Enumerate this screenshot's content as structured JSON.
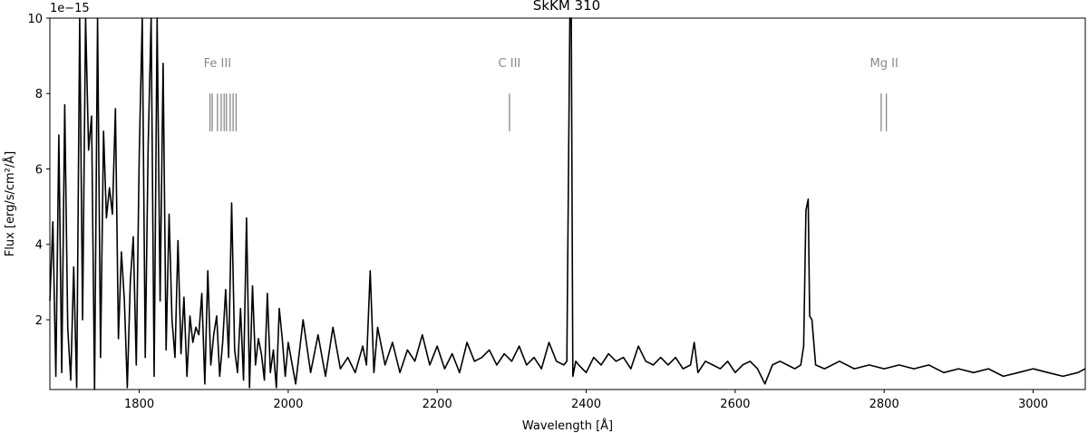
{
  "chart_data": {
    "type": "line",
    "title": "SkKM 310",
    "xlabel": "Wavelength [Å]",
    "ylabel": "Flux [erg/s/cm²/Å]",
    "y_offset_text": "1e−15",
    "xlim": [
      1680,
      3070
    ],
    "ylim": [
      0.15,
      10
    ],
    "xticks": [
      1800,
      2000,
      2200,
      2400,
      2600,
      2800,
      3000
    ],
    "yticks": [
      2,
      4,
      6,
      8,
      10
    ],
    "grid": false,
    "line_color": "#000000",
    "marker_color": "#888888",
    "line_markers": [
      {
        "label": "Fe III",
        "label_x": 1905,
        "lines": [
          1895,
          1898,
          1905,
          1910,
          1914,
          1917,
          1922,
          1926,
          1930
        ]
      },
      {
        "label": "C III",
        "label_x": 2297,
        "lines": [
          2297
        ]
      },
      {
        "label": "Mg II",
        "label_x": 2800,
        "lines": [
          2796,
          2803
        ]
      }
    ],
    "marker_range": [
      7.0,
      8.0
    ],
    "series": [
      {
        "x": [
          1680,
          1684,
          1688,
          1692,
          1696,
          1700,
          1704,
          1708,
          1712,
          1716,
          1720,
          1724,
          1728,
          1732,
          1736,
          1740,
          1744,
          1748,
          1752,
          1756,
          1760,
          1764,
          1768,
          1772,
          1776,
          1780,
          1784,
          1788,
          1792,
          1796,
          1800,
          1804,
          1808,
          1812,
          1816,
          1820,
          1824,
          1828,
          1832,
          1836,
          1840,
          1844,
          1848,
          1852,
          1856,
          1860,
          1864,
          1868,
          1872,
          1876,
          1880,
          1884,
          1888,
          1892,
          1896,
          1900,
          1904,
          1908,
          1912,
          1916,
          1920,
          1924,
          1928,
          1932,
          1936,
          1940,
          1944,
          1948,
          1952,
          1956,
          1960,
          1964,
          1968,
          1972,
          1976,
          1980,
          1984,
          1988,
          1992,
          1996,
          2000,
          2010,
          2020,
          2030,
          2040,
          2050,
          2060,
          2070,
          2080,
          2090,
          2100,
          2105,
          2110,
          2115,
          2120,
          2130,
          2140,
          2150,
          2160,
          2170,
          2180,
          2190,
          2200,
          2210,
          2220,
          2230,
          2240,
          2250,
          2260,
          2270,
          2280,
          2290,
          2300,
          2310,
          2320,
          2330,
          2340,
          2350,
          2360,
          2370,
          2374,
          2378,
          2380,
          2382,
          2386,
          2390,
          2400,
          2410,
          2420,
          2430,
          2440,
          2450,
          2460,
          2470,
          2480,
          2490,
          2500,
          2510,
          2520,
          2530,
          2540,
          2545,
          2550,
          2560,
          2570,
          2580,
          2590,
          2600,
          2610,
          2620,
          2630,
          2640,
          2650,
          2660,
          2670,
          2680,
          2688,
          2692,
          2695,
          2698,
          2700,
          2703,
          2708,
          2720,
          2740,
          2760,
          2780,
          2800,
          2820,
          2840,
          2860,
          2880,
          2900,
          2920,
          2940,
          2960,
          2980,
          3000,
          3020,
          3040,
          3060,
          3070
        ],
        "y": [
          2.5,
          4.6,
          0.5,
          6.9,
          0.6,
          7.7,
          1.8,
          0.4,
          3.4,
          0.2,
          10.0,
          2.0,
          10.0,
          6.5,
          7.4,
          0.1,
          10.0,
          1.0,
          7.0,
          4.7,
          5.5,
          4.8,
          7.6,
          1.5,
          3.8,
          2.5,
          0.2,
          3.0,
          4.2,
          0.8,
          6.4,
          10.0,
          1.0,
          6.6,
          10.0,
          0.5,
          10.0,
          2.5,
          8.8,
          1.2,
          4.8,
          2.0,
          1.0,
          4.1,
          1.1,
          2.6,
          0.5,
          2.1,
          1.4,
          1.8,
          1.6,
          2.7,
          0.3,
          3.3,
          0.8,
          1.6,
          2.1,
          0.5,
          1.4,
          2.8,
          1.0,
          5.1,
          1.2,
          0.6,
          2.3,
          0.4,
          4.7,
          0.2,
          2.9,
          0.8,
          1.5,
          1.1,
          0.4,
          2.7,
          0.6,
          1.2,
          0.2,
          2.3,
          1.5,
          0.5,
          1.4,
          0.3,
          2.0,
          0.6,
          1.6,
          0.5,
          1.8,
          0.7,
          1.0,
          0.6,
          1.3,
          0.8,
          3.3,
          0.6,
          1.8,
          0.8,
          1.4,
          0.6,
          1.2,
          0.9,
          1.6,
          0.8,
          1.3,
          0.7,
          1.1,
          0.6,
          1.4,
          0.9,
          1.0,
          1.2,
          0.8,
          1.1,
          0.9,
          1.3,
          0.8,
          1.0,
          0.7,
          1.4,
          0.9,
          0.8,
          0.9,
          10.0,
          10.0,
          0.5,
          0.9,
          0.8,
          0.6,
          1.0,
          0.8,
          1.1,
          0.9,
          1.0,
          0.7,
          1.3,
          0.9,
          0.8,
          1.0,
          0.8,
          1.0,
          0.7,
          0.8,
          1.4,
          0.6,
          0.9,
          0.8,
          0.7,
          0.9,
          0.6,
          0.8,
          0.9,
          0.7,
          0.3,
          0.8,
          0.9,
          0.8,
          0.7,
          0.8,
          1.3,
          4.9,
          5.2,
          2.1,
          2.0,
          0.8,
          0.7,
          0.9,
          0.7,
          0.8,
          0.7,
          0.8,
          0.7,
          0.8,
          0.6,
          0.7,
          0.6,
          0.7,
          0.5,
          0.6,
          0.7,
          0.6,
          0.5,
          0.6,
          0.7
        ]
      }
    ]
  }
}
